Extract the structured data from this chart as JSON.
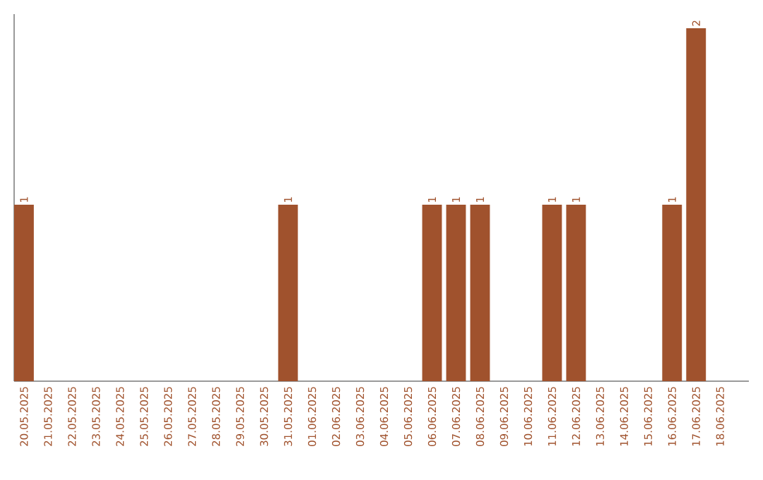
{
  "chart_data": {
    "type": "bar",
    "relative": false,
    "categories": [
      "20.05.2025",
      "21.05.2025",
      "22.05.2025",
      "23.05.2025",
      "24.05.2025",
      "25.05.2025",
      "26.05.2025",
      "27.05.2025",
      "28.05.2025",
      "29.05.2025",
      "30.05.2025",
      "31.05.2025",
      "01.06.2025",
      "02.06.2025",
      "03.06.2025",
      "04.06.2025",
      "05.06.2025",
      "06.06.2025",
      "07.06.2025",
      "08.06.2025",
      "09.06.2025",
      "10.06.2025",
      "11.06.2025",
      "12.06.2025",
      "13.06.2025",
      "14.06.2025",
      "15.06.2025",
      "16.06.2025",
      "17.06.2025",
      "18.06.2025"
    ],
    "values": [
      1,
      0,
      0,
      0,
      0,
      0,
      0,
      0,
      0,
      0,
      0,
      1,
      0,
      0,
      0,
      0,
      0,
      1,
      1,
      1,
      0,
      0,
      1,
      1,
      0,
      0,
      0,
      1,
      2,
      0
    ],
    "value_labels": [
      "1",
      null,
      null,
      null,
      null,
      null,
      null,
      null,
      null,
      null,
      null,
      "1",
      null,
      null,
      null,
      null,
      null,
      "1",
      "1",
      "1",
      null,
      null,
      "1",
      "1",
      null,
      null,
      null,
      "1",
      "2",
      null
    ],
    "color": "#a0522d",
    "tick_labels": "x"
  }
}
